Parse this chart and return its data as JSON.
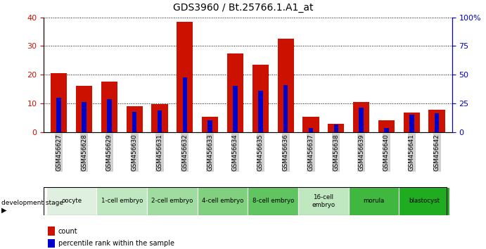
{
  "title": "GDS3960 / Bt.25766.1.A1_at",
  "samples": [
    "GSM456627",
    "GSM456628",
    "GSM456629",
    "GSM456630",
    "GSM456631",
    "GSM456632",
    "GSM456633",
    "GSM456634",
    "GSM456635",
    "GSM456636",
    "GSM456637",
    "GSM456638",
    "GSM456639",
    "GSM456640",
    "GSM456641",
    "GSM456642"
  ],
  "count_values": [
    20.5,
    16.0,
    17.5,
    9.0,
    9.8,
    38.5,
    5.2,
    27.5,
    23.5,
    32.5,
    5.3,
    2.8,
    10.5,
    4.2,
    6.8,
    7.8
  ],
  "percentile_values": [
    30.0,
    26.0,
    28.5,
    17.5,
    19.0,
    47.5,
    10.0,
    40.0,
    36.0,
    41.0,
    3.5,
    6.5,
    21.0,
    3.5,
    15.0,
    16.5
  ],
  "stage_list": [
    {
      "label": "oocyte",
      "start": 0,
      "end": 1,
      "color": "#e0f0e0"
    },
    {
      "label": "1-cell embryo",
      "start": 2,
      "end": 3,
      "color": "#c0e8c0"
    },
    {
      "label": "2-cell embryo",
      "start": 4,
      "end": 5,
      "color": "#a0dca0"
    },
    {
      "label": "4-cell embryo",
      "start": 6,
      "end": 7,
      "color": "#80d080"
    },
    {
      "label": "8-cell embryo",
      "start": 8,
      "end": 9,
      "color": "#60c460"
    },
    {
      "label": "16-cell\nembryo",
      "start": 10,
      "end": 11,
      "color": "#c0e8c0"
    },
    {
      "label": "morula",
      "start": 12,
      "end": 13,
      "color": "#40b840"
    },
    {
      "label": "blastocyst",
      "start": 14,
      "end": 15,
      "color": "#20ac20"
    }
  ],
  "bar_color_red": "#cc1100",
  "bar_color_blue": "#0000cc",
  "ylim_left": [
    0,
    40
  ],
  "ylim_right": [
    0,
    100
  ],
  "tick_label_bg": "#d0d0d0",
  "title_fontsize": 10
}
